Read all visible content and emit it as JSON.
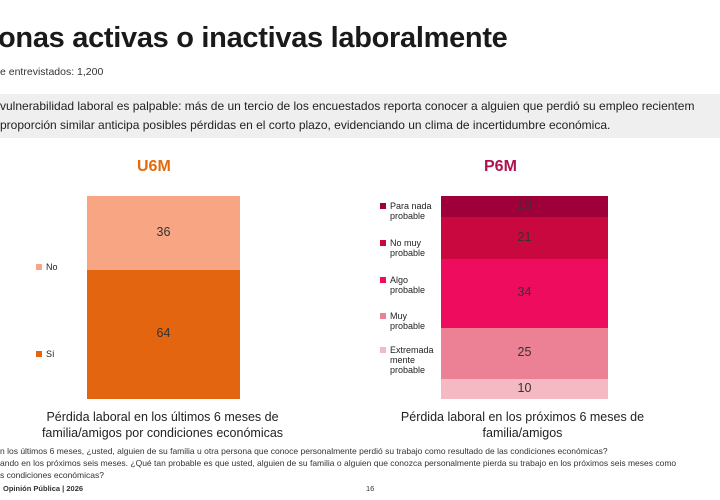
{
  "page": {
    "title": "onas activas o inactivas laboralmente",
    "subtitle": "e entrevistados: 1,200",
    "insight_line1": "vulnerabilidad laboral es palpable: más de un tercio de los encuestados reporta conocer a alguien que perdió su empleo recientem",
    "insight_line2": " proporción similar anticipa posibles pérdidas en el corto plazo, evidenciando un clima de incertidumbre económica.",
    "footnote1": "n los últimos 6 meses, ¿usted, alguien de su familia u otra persona que conoce personalmente perdió su trabajo como resultado de las condiciones económicas?",
    "footnote2": "ando en los próximos seis meses. ¿Qué tan probable es que usted, alguien de su familia o alguien que conozca personalmente pierda su trabajo en los próximos seis meses como",
    "footnote3": "s condiciones económicas?",
    "footer_source": "Opinión Pública | 2026",
    "page_number": "16"
  },
  "chart_data": [
    {
      "type": "bar",
      "stacked": true,
      "title": "U6M",
      "title_color": "#e36b0e",
      "caption_line1": "Pérdida laboral en los últimos 6 meses de",
      "caption_line2": "familia/amigos por condiciones económicas",
      "categories": [
        ""
      ],
      "series": [
        {
          "name": "Sí",
          "values": [
            64
          ],
          "color": "#e3650f"
        },
        {
          "name": "No",
          "values": [
            36
          ],
          "color": "#f8a583"
        }
      ],
      "ylim": [
        0,
        100
      ],
      "legend": "left"
    },
    {
      "type": "bar",
      "stacked": true,
      "title": "P6M",
      "title_color": "#b0124f",
      "caption_line1": "Pérdida laboral en los próximos 6 meses de",
      "caption_line2": "familia/amigos",
      "categories": [
        ""
      ],
      "series": [
        {
          "name": "Extremadamente probable",
          "label_lines": [
            "Extremada",
            "mente",
            "probable"
          ],
          "values": [
            10
          ],
          "color": "#f5b9c4"
        },
        {
          "name": "Muy probable",
          "label_lines": [
            "Muy",
            "probable"
          ],
          "values": [
            25
          ],
          "color": "#ec8094"
        },
        {
          "name": "Algo probable",
          "label_lines": [
            "Algo",
            "probable"
          ],
          "values": [
            34
          ],
          "color": "#ee0c5f"
        },
        {
          "name": "No muy probable",
          "label_lines": [
            "No muy",
            "probable"
          ],
          "values": [
            21
          ],
          "color": "#c8083f"
        },
        {
          "name": "Para nada probable",
          "label_lines": [
            "Para nada",
            "probable"
          ],
          "values": [
            10
          ],
          "color": "#a00039"
        }
      ],
      "ylim": [
        0,
        100
      ],
      "legend": "left"
    }
  ]
}
